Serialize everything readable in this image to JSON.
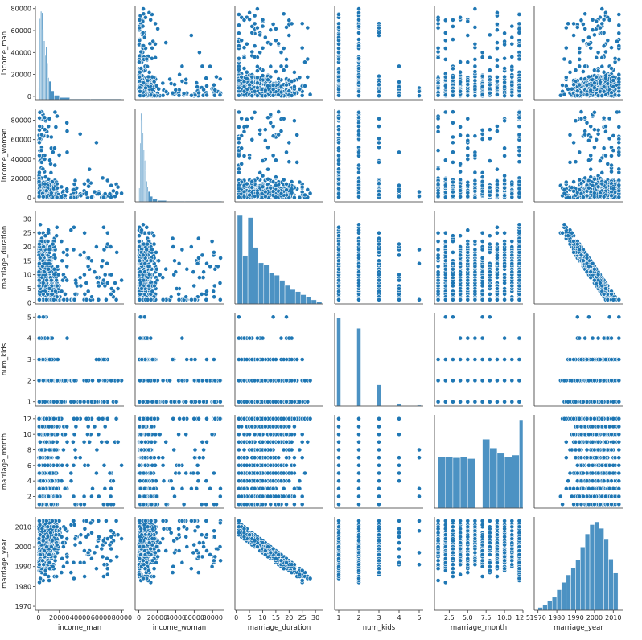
{
  "chart_data": {
    "type": "scatter",
    "subtype": "pairplot",
    "point_color": "#1f77b4",
    "hist_color": "#1f77b4",
    "variables": [
      {
        "name": "income_man",
        "range": [
          -3000,
          82000
        ],
        "ticks": [
          0,
          20000,
          40000,
          60000,
          80000
        ],
        "tick_labels": [
          "0",
          "20000",
          "40000",
          "60000",
          "80000"
        ],
        "kind": "continuous"
      },
      {
        "name": "income_woman",
        "range": [
          -4000,
          92000
        ],
        "ticks": [
          0,
          20000,
          40000,
          60000,
          80000
        ],
        "tick_labels": [
          "0",
          "20000",
          "40000",
          "60000",
          "80000"
        ],
        "kind": "continuous"
      },
      {
        "name": "marriage_duration",
        "range": [
          -0.5,
          33
        ],
        "ticks": [
          0,
          5,
          10,
          15,
          20,
          25,
          30
        ],
        "tick_labels": [
          "0",
          "5",
          "10",
          "15",
          "20",
          "25",
          "30"
        ],
        "kind": "integer"
      },
      {
        "name": "num_kids",
        "range": [
          0.8,
          5.2
        ],
        "ticks": [
          1,
          2,
          3,
          4,
          5
        ],
        "tick_labels": [
          "1",
          "2",
          "3",
          "4",
          "5"
        ],
        "kind": "integer"
      },
      {
        "name": "marriage_month",
        "range": [
          0.5,
          12.5
        ],
        "ticks": [
          2,
          4,
          6,
          8,
          10,
          12
        ],
        "tick_labels": [
          "2",
          "4",
          "6",
          "8",
          "10",
          "12"
        ],
        "x_ticks": [
          2.5,
          5.0,
          7.5,
          10.0,
          12.5
        ],
        "x_tick_labels": [
          "2.5",
          "5.0",
          "7.5",
          "10.0",
          "12.5"
        ],
        "kind": "integer"
      },
      {
        "name": "marriage_year",
        "range": [
          1968,
          2015
        ],
        "ticks": [
          1970,
          1980,
          1990,
          2000,
          2010
        ],
        "tick_labels": [
          "1970",
          "1980",
          "1990",
          "2000",
          "2010"
        ],
        "kind": "integer"
      }
    ],
    "histograms": {
      "income_man": {
        "bins": [
          0,
          1000,
          2000,
          3000,
          4000,
          5000,
          6000,
          7000,
          8000,
          9000,
          10000,
          12000,
          15000,
          20000,
          30000,
          50000,
          80000
        ],
        "counts": [
          15,
          110,
          120,
          118,
          95,
          80,
          60,
          72,
          50,
          30,
          25,
          12,
          6,
          3,
          1,
          1
        ]
      },
      "income_woman": {
        "bins": [
          0,
          1000,
          2000,
          3000,
          4000,
          5000,
          6000,
          7000,
          8000,
          9000,
          10000,
          12000,
          15000,
          20000,
          30000,
          50000,
          90000
        ],
        "counts": [
          20,
          85,
          128,
          118,
          100,
          75,
          60,
          45,
          30,
          22,
          15,
          8,
          4,
          2,
          1,
          1
        ]
      },
      "marriage_duration": {
        "bins": [
          0.4,
          2.4,
          4.4,
          6.4,
          8.4,
          10.4,
          12.4,
          14.4,
          16.4,
          18.4,
          20.4,
          22.4,
          24.4,
          26.4,
          28.4,
          30.4,
          32.4
        ],
        "counts": [
          86,
          47,
          84,
          55,
          40,
          38,
          30,
          28,
          23,
          18,
          14,
          12,
          9,
          7,
          4,
          2
        ]
      },
      "num_kids": {
        "bins": [
          0.9,
          1.1,
          1.9,
          2.1,
          2.9,
          3.1,
          3.9,
          4.1,
          4.9,
          5.1
        ],
        "counts": [
          100,
          0,
          88,
          0,
          24,
          0,
          3,
          0,
          1
        ]
      },
      "marriage_month": {
        "bins": [
          1,
          2,
          3,
          4,
          5,
          6,
          7,
          8,
          9,
          10,
          11,
          12,
          12.5
        ],
        "counts": [
          58,
          58,
          57,
          58,
          56,
          0,
          78,
          68,
          62,
          58,
          60,
          100
        ]
      },
      "marriage_year": {
        "bins": [
          1970,
          1972.5,
          1975,
          1977.5,
          1980,
          1982.5,
          1985,
          1987.5,
          1990,
          1992.5,
          1995,
          1997.5,
          2000,
          2002.5,
          2005,
          2007.5,
          2010,
          2012.5
        ],
        "counts": [
          3,
          6,
          10,
          14,
          22,
          30,
          38,
          46,
          54,
          68,
          82,
          92,
          95,
          88,
          76,
          55,
          40
        ]
      }
    }
  }
}
